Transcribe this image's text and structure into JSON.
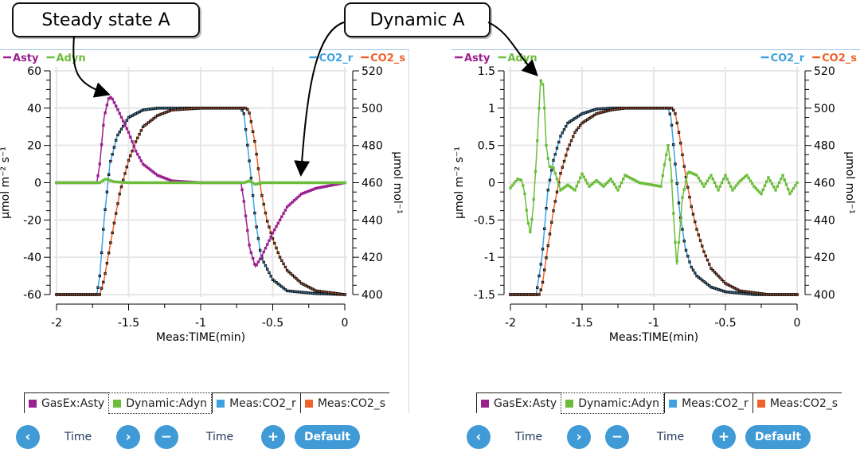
{
  "callouts": {
    "steady": "Steady state A",
    "dynamic": "Dynamic A"
  },
  "colors": {
    "Asty": "#9b1f8f",
    "Adyn": "#6cbd3c",
    "CO2_r": "#3ea2e0",
    "CO2_s": "#f0622d"
  },
  "legend": [
    "GasEx:Asty",
    "Dynamic:Adyn",
    "Meas:CO2_r",
    "Meas:CO2_s"
  ],
  "controls": {
    "prev": "‹",
    "time1": "Time",
    "next": "›",
    "minus": "−",
    "time2": "Time",
    "plus": "+",
    "default": "Default"
  },
  "chart_data": [
    {
      "type": "line",
      "xlabel": "Meas:TIME(min)",
      "ylabel": "µmol m⁻² s⁻¹",
      "y2label": "µmol mol⁻¹",
      "xlim": [
        -2,
        0
      ],
      "ylim": [
        -60,
        60
      ],
      "y2lim": [
        400,
        520
      ],
      "xticks": [
        "-2",
        "-1.5",
        "-1",
        "-0.5",
        "0"
      ],
      "yticks": [
        "-60",
        "-40",
        "-20",
        "0",
        "20",
        "40",
        "60"
      ],
      "y2ticks": [
        "400",
        "420",
        "440",
        "460",
        "480",
        "500",
        "520"
      ],
      "inline_legend_left": [
        "Asty",
        "Adyn"
      ],
      "inline_legend_right": [
        "CO2_r",
        "CO2_s"
      ],
      "legend_selected": 1,
      "grid": true,
      "series": [
        {
          "name": "CO2_r",
          "axis": "right",
          "points": [
            [
              -2,
              400
            ],
            [
              -1.72,
              400
            ],
            [
              -1.7,
              410
            ],
            [
              -1.67,
              440
            ],
            [
              -1.63,
              470
            ],
            [
              -1.58,
              485
            ],
            [
              -1.5,
              495
            ],
            [
              -1.4,
              499
            ],
            [
              -1.3,
              500
            ],
            [
              -0.72,
              500
            ],
            [
              -0.7,
              497
            ],
            [
              -0.66,
              470
            ],
            [
              -0.62,
              440
            ],
            [
              -0.58,
              420
            ],
            [
              -0.5,
              408
            ],
            [
              -0.4,
              402
            ],
            [
              -0.2,
              400.5
            ],
            [
              0,
              400
            ]
          ]
        },
        {
          "name": "CO2_s",
          "axis": "right",
          "points": [
            [
              -2,
              400
            ],
            [
              -1.7,
              400
            ],
            [
              -1.67,
              408
            ],
            [
              -1.62,
              430
            ],
            [
              -1.56,
              455
            ],
            [
              -1.5,
              472
            ],
            [
              -1.45,
              482
            ],
            [
              -1.4,
              490
            ],
            [
              -1.3,
              496
            ],
            [
              -1.2,
              499
            ],
            [
              -1,
              500
            ],
            [
              -0.68,
              500
            ],
            [
              -0.66,
              497
            ],
            [
              -0.62,
              480
            ],
            [
              -0.58,
              455
            ],
            [
              -0.54,
              440
            ],
            [
              -0.5,
              430
            ],
            [
              -0.45,
              420
            ],
            [
              -0.4,
              413
            ],
            [
              -0.3,
              406
            ],
            [
              -0.2,
              402
            ],
            [
              0,
              400
            ]
          ]
        },
        {
          "name": "Asty",
          "axis": "left",
          "points": [
            [
              -2,
              0
            ],
            [
              -1.72,
              0
            ],
            [
              -1.7,
              10
            ],
            [
              -1.67,
              35
            ],
            [
              -1.64,
              45
            ],
            [
              -1.62,
              46
            ],
            [
              -1.58,
              40
            ],
            [
              -1.5,
              27
            ],
            [
              -1.45,
              17
            ],
            [
              -1.4,
              10
            ],
            [
              -1.3,
              4
            ],
            [
              -1.2,
              1
            ],
            [
              -1,
              0
            ],
            [
              -0.72,
              0
            ],
            [
              -0.7,
              -10
            ],
            [
              -0.66,
              -35
            ],
            [
              -0.62,
              -45
            ],
            [
              -0.58,
              -40
            ],
            [
              -0.5,
              -27
            ],
            [
              -0.4,
              -13
            ],
            [
              -0.3,
              -6
            ],
            [
              -0.2,
              -3
            ],
            [
              0,
              0
            ]
          ]
        },
        {
          "name": "Adyn",
          "axis": "left",
          "points": [
            [
              -2,
              0
            ],
            [
              -1.7,
              0
            ],
            [
              -1.66,
              2
            ],
            [
              -1.6,
              0.5
            ],
            [
              -1.5,
              0
            ],
            [
              -0.7,
              0
            ],
            [
              -0.66,
              1
            ],
            [
              -0.62,
              -1
            ],
            [
              -0.58,
              0
            ],
            [
              0,
              0
            ]
          ]
        }
      ]
    },
    {
      "type": "line",
      "xlabel": "Meas:TIME(min)",
      "ylabel": "µmol m⁻² s⁻¹",
      "y2label": "µmol mol⁻¹",
      "xlim": [
        -2,
        0
      ],
      "ylim": [
        -1.5,
        1.5
      ],
      "y2lim": [
        400,
        520
      ],
      "xticks": [
        "-2",
        "-1.5",
        "-1",
        "-0.5",
        "0"
      ],
      "yticks": [
        "-1.5",
        "-1",
        "-0.5",
        "0",
        "0.5",
        "1",
        "1.5"
      ],
      "y2ticks": [
        "400",
        "420",
        "440",
        "460",
        "480",
        "500",
        "520"
      ],
      "inline_legend_left": [
        "Asty",
        "Adyn"
      ],
      "inline_legend_right": [
        "CO2_r",
        "CO2_s"
      ],
      "legend_selected": 1,
      "grid": true,
      "series": [
        {
          "name": "CO2_r",
          "axis": "right",
          "points": [
            [
              -2,
              400
            ],
            [
              -1.82,
              400
            ],
            [
              -1.78,
              420
            ],
            [
              -1.74,
              455
            ],
            [
              -1.7,
              472
            ],
            [
              -1.65,
              485
            ],
            [
              -1.6,
              492
            ],
            [
              -1.5,
              497
            ],
            [
              -1.4,
              499.5
            ],
            [
              -1.3,
              500
            ],
            [
              -0.9,
              500
            ],
            [
              -0.88,
              495
            ],
            [
              -0.85,
              470
            ],
            [
              -0.82,
              445
            ],
            [
              -0.78,
              425
            ],
            [
              -0.74,
              415
            ],
            [
              -0.7,
              410
            ],
            [
              -0.6,
              404
            ],
            [
              -0.5,
              401.5
            ],
            [
              -0.3,
              400
            ],
            [
              0,
              400
            ]
          ]
        },
        {
          "name": "CO2_s",
          "axis": "right",
          "points": [
            [
              -2,
              400
            ],
            [
              -1.8,
              400
            ],
            [
              -1.78,
              404
            ],
            [
              -1.74,
              425
            ],
            [
              -1.7,
              445
            ],
            [
              -1.65,
              465
            ],
            [
              -1.6,
              478
            ],
            [
              -1.55,
              487
            ],
            [
              -1.5,
              492
            ],
            [
              -1.4,
              497
            ],
            [
              -1.3,
              499
            ],
            [
              -1.2,
              500
            ],
            [
              -0.87,
              500
            ],
            [
              -0.85,
              497
            ],
            [
              -0.82,
              485
            ],
            [
              -0.78,
              465
            ],
            [
              -0.74,
              448
            ],
            [
              -0.7,
              435
            ],
            [
              -0.65,
              423
            ],
            [
              -0.6,
              414
            ],
            [
              -0.5,
              406
            ],
            [
              -0.4,
              402
            ],
            [
              -0.3,
              401
            ],
            [
              -0.2,
              400
            ],
            [
              0,
              400
            ]
          ]
        },
        {
          "name": "Adyn",
          "axis": "left",
          "points": [
            [
              -2,
              -0.07
            ],
            [
              -1.95,
              0.05
            ],
            [
              -1.92,
              0.03
            ],
            [
              -1.9,
              -0.15
            ],
            [
              -1.88,
              -0.5
            ],
            [
              -1.86,
              -0.68
            ],
            [
              -1.84,
              -0.3
            ],
            [
              -1.82,
              0.3
            ],
            [
              -1.8,
              1.0
            ],
            [
              -1.79,
              1.38
            ],
            [
              -1.77,
              1.3
            ],
            [
              -1.75,
              0.5
            ],
            [
              -1.73,
              0.22
            ],
            [
              -1.7,
              0.2
            ],
            [
              -1.65,
              -0.1
            ],
            [
              -1.6,
              -0.03
            ],
            [
              -1.55,
              -0.1
            ],
            [
              -1.5,
              0.12
            ],
            [
              -1.45,
              -0.05
            ],
            [
              -1.4,
              0.03
            ],
            [
              -1.35,
              -0.05
            ],
            [
              -1.3,
              0.05
            ],
            [
              -1.25,
              -0.1
            ],
            [
              -1.2,
              0.1
            ],
            [
              -1.1,
              0
            ],
            [
              -0.95,
              -0.05
            ],
            [
              -0.92,
              0.3
            ],
            [
              -0.9,
              0.5
            ],
            [
              -0.88,
              0.2
            ],
            [
              -0.86,
              -0.5
            ],
            [
              -0.84,
              -1.1
            ],
            [
              -0.82,
              -0.7
            ],
            [
              -0.8,
              -0.2
            ],
            [
              -0.76,
              0.15
            ],
            [
              -0.7,
              0.1
            ],
            [
              -0.65,
              -0.05
            ],
            [
              -0.6,
              0.1
            ],
            [
              -0.55,
              -0.1
            ],
            [
              -0.5,
              0.1
            ],
            [
              -0.45,
              -0.1
            ],
            [
              -0.4,
              0.02
            ],
            [
              -0.35,
              0.1
            ],
            [
              -0.3,
              -0.05
            ],
            [
              -0.25,
              -0.15
            ],
            [
              -0.2,
              0.07
            ],
            [
              -0.15,
              -0.1
            ],
            [
              -0.1,
              0.1
            ],
            [
              -0.05,
              -0.15
            ],
            [
              0,
              0
            ]
          ]
        }
      ]
    }
  ]
}
